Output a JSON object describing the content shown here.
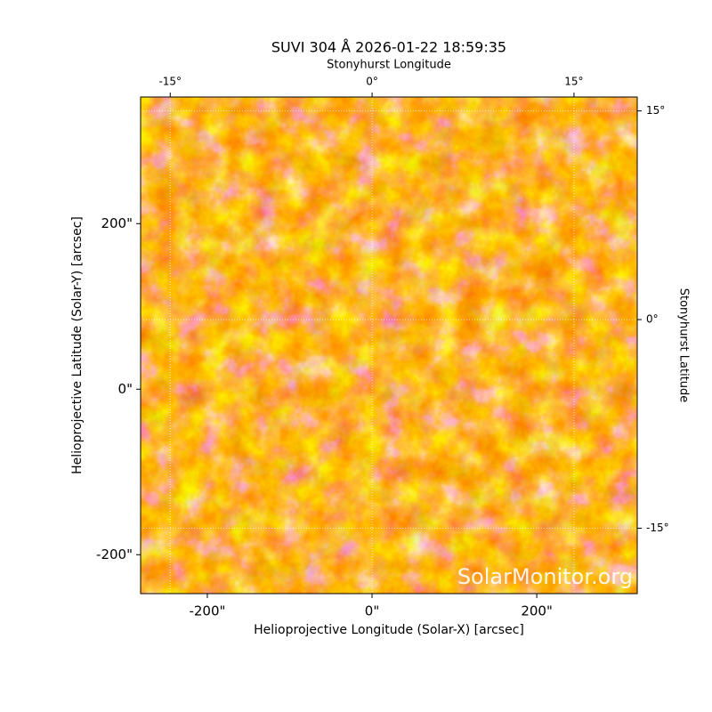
{
  "chart_data": {
    "type": "image",
    "title": "SUVI 304 Å 2026-01-22 18:59:35",
    "xlabel": "Helioprojective Longitude (Solar-X) [arcsec]",
    "ylabel": "Helioprojective Latitude (Solar-Y) [arcsec]",
    "x2label": "Stonyhurst Longitude",
    "y2label": "Stonyhurst Latitude",
    "xlim": [
      -281,
      322
    ],
    "ylim": [
      -247,
      353
    ],
    "xticks": [
      {
        "value": -200,
        "label": "-200\""
      },
      {
        "value": 0,
        "label": "0\""
      },
      {
        "value": 200,
        "label": "200\""
      }
    ],
    "yticks": [
      {
        "value": -200,
        "label": "-200\""
      },
      {
        "value": 0,
        "label": "0\""
      },
      {
        "value": 200,
        "label": "200\""
      }
    ],
    "x2lim": [
      -17.2,
      19.7
    ],
    "x2ticks": [
      {
        "value": -15,
        "label": "-15°"
      },
      {
        "value": 0,
        "label": "0°"
      },
      {
        "value": 15,
        "label": "15°"
      }
    ],
    "y2lim": [
      -19.7,
      16.0
    ],
    "y2ticks": [
      {
        "value": -15,
        "label": "-15°"
      },
      {
        "value": 0,
        "label": "0°"
      },
      {
        "value": 15,
        "label": "15°"
      }
    ],
    "grid": true,
    "watermark": "SolarMonitor.org"
  }
}
